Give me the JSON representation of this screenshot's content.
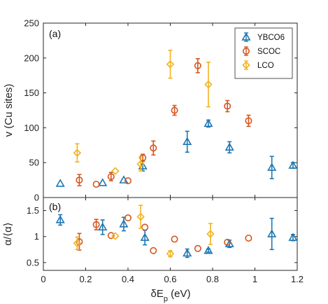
{
  "chart_data": {
    "type": "scatter",
    "xlabel": "δE",
    "xlabel_sub": "p",
    "xlabel_unit": " (eV)",
    "xlim": [
      0,
      1.2
    ],
    "x_ticks": [
      "0",
      "0.2",
      "0.4",
      "0.6",
      "0.8",
      "1",
      "1.2"
    ],
    "legend_position": "top-right",
    "grid": false,
    "colors": {
      "YBCO6": "#1f77b4",
      "SCOC": "#d4561e",
      "LCO": "#f2b31f"
    },
    "panels": [
      {
        "label": "(a)",
        "ylabel": "v (Cu sites)",
        "ylim": [
          0,
          250
        ],
        "y_ticks": [
          "0",
          "50",
          "100",
          "150",
          "200",
          "250"
        ],
        "series": [
          {
            "name": "YBCO6",
            "marker": "triangle",
            "x": [
              0.08,
              0.28,
              0.38,
              0.47,
              0.68,
              0.78,
              0.88,
              1.08,
              1.18
            ],
            "y": [
              20,
              21,
              25,
              45,
              80,
              106,
              72,
              43,
              46
            ],
            "err": [
              0,
              0,
              0,
              7,
              15,
              5,
              8,
              16,
              4
            ]
          },
          {
            "name": "SCOC",
            "marker": "circle",
            "x": [
              0.17,
              0.25,
              0.32,
              0.4,
              0.47,
              0.52,
              0.62,
              0.73,
              0.87,
              0.97
            ],
            "y": [
              25,
              19,
              30,
              24,
              57,
              71,
              125,
              189,
              131,
              110
            ],
            "err": [
              8,
              0,
              6,
              0,
              5,
              10,
              7,
              10,
              8,
              8
            ]
          },
          {
            "name": "LCO",
            "marker": "diamond",
            "x": [
              0.16,
              0.34,
              0.46,
              0.6,
              0.78
            ],
            "y": [
              64,
              38,
              48,
              191,
              162
            ],
            "err": [
              13,
              0,
              10,
              20,
              32
            ]
          }
        ]
      },
      {
        "label": "(b)",
        "ylabel": "α/⟨α⟩",
        "ylim": [
          0.35,
          1.75
        ],
        "y_ticks": [
          "0.5",
          "1",
          "1.5"
        ],
        "series": [
          {
            "name": "YBCO6",
            "marker": "triangle",
            "x": [
              0.08,
              0.28,
              0.38,
              0.48,
              0.68,
              0.78,
              0.88,
              1.08,
              1.18
            ],
            "y": [
              1.32,
              1.18,
              1.24,
              0.98,
              0.68,
              0.73,
              0.86,
              1.05,
              0.98
            ],
            "err": [
              0.1,
              0.14,
              0.13,
              0.14,
              0.08,
              0.03,
              0.07,
              0.3,
              0.06
            ]
          },
          {
            "name": "SCOC",
            "marker": "circle",
            "x": [
              0.17,
              0.25,
              0.32,
              0.4,
              0.48,
              0.52,
              0.62,
              0.73,
              0.87,
              0.97
            ],
            "y": [
              0.9,
              1.23,
              1.02,
              1.36,
              1.18,
              0.73,
              0.95,
              0.77,
              0.89,
              0.97
            ],
            "err": [
              0.16,
              0.1,
              0,
              0,
              0,
              0,
              0,
              0,
              0,
              0
            ]
          },
          {
            "name": "LCO",
            "marker": "diamond",
            "x": [
              0.16,
              0.34,
              0.46,
              0.6,
              0.79
            ],
            "y": [
              0.87,
              1.01,
              1.38,
              0.67,
              1.05
            ],
            "err": [
              0.12,
              0,
              0.22,
              0.06,
              0.2
            ]
          }
        ]
      }
    ]
  }
}
